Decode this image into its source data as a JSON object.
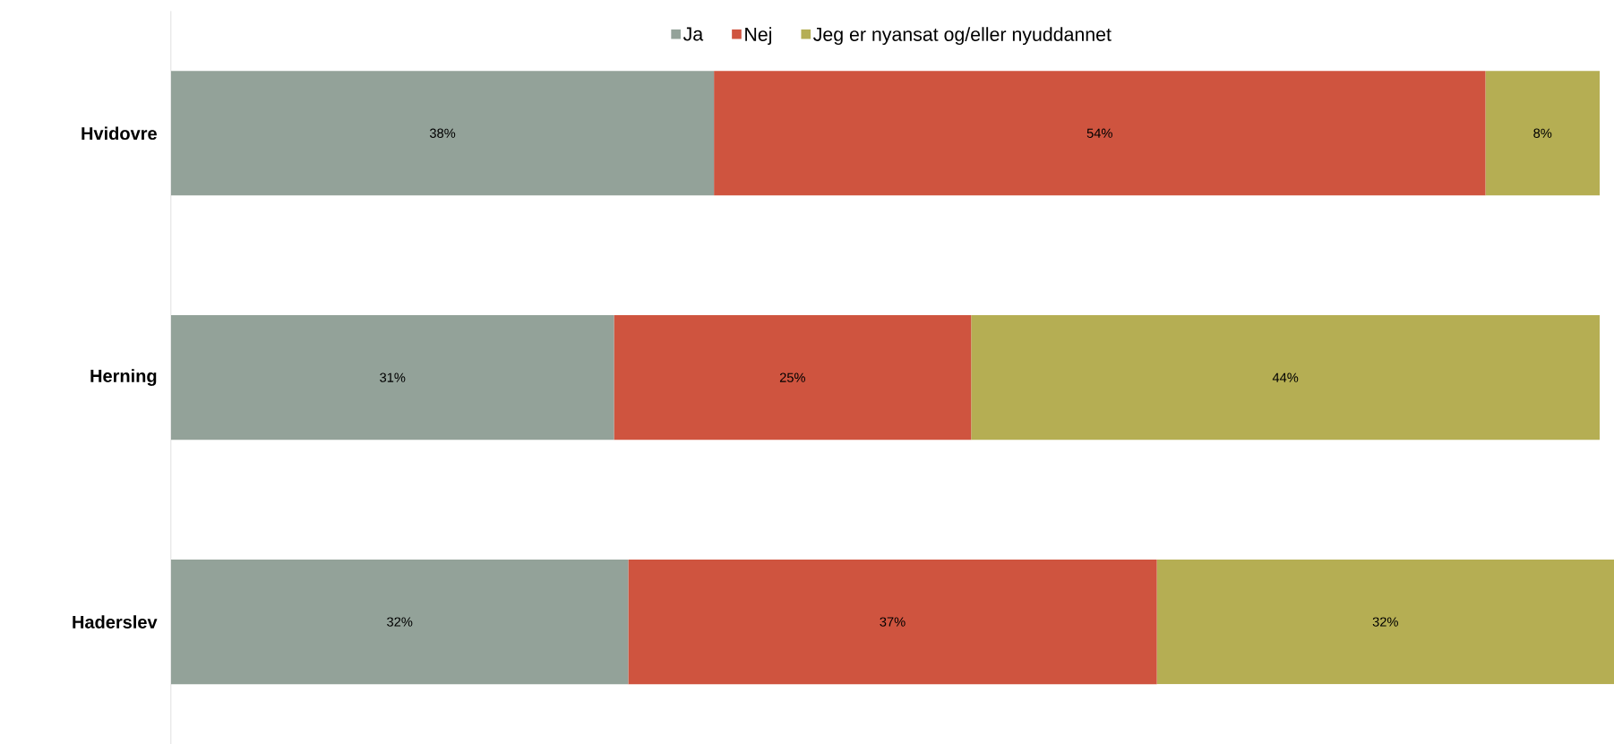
{
  "chart_data": {
    "type": "bar",
    "orientation": "horizontal",
    "stacked": true,
    "legend": "top",
    "categories": [
      "Hvidovre",
      "Herning",
      "Haderslev"
    ],
    "series": [
      {
        "name": "Ja",
        "color": "#93a299",
        "values": [
          38,
          31,
          32
        ],
        "value_labels": [
          "38%",
          "31%",
          "32%"
        ]
      },
      {
        "name": "Nej",
        "color": "#cf543f",
        "values": [
          54,
          25,
          37
        ],
        "value_labels": [
          "54%",
          "25%",
          "37%"
        ]
      },
      {
        "name": "Jeg er nyansat og/eller nyuddannet",
        "color": "#b5ae53",
        "values": [
          8,
          44,
          32
        ],
        "value_labels": [
          "8%",
          "44%",
          "32%"
        ]
      }
    ]
  }
}
